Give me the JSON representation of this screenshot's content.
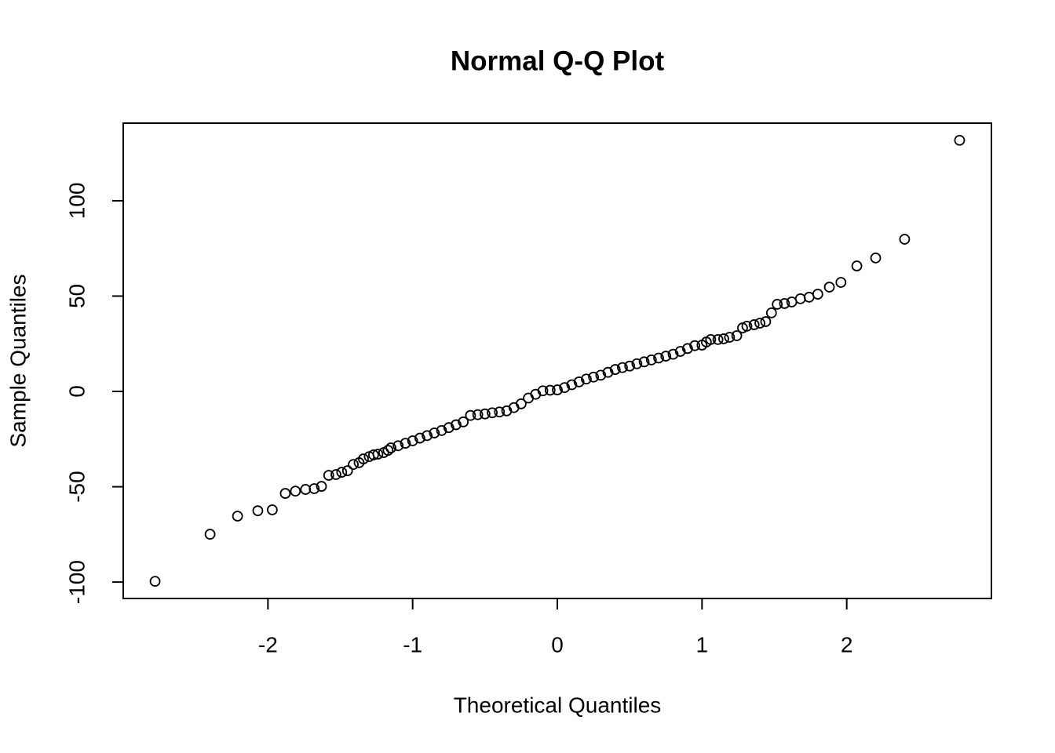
{
  "chart_data": {
    "type": "scatter",
    "title": "Normal Q-Q Plot",
    "x_label": "Theoretical Quantiles",
    "y_label": "Sample Quantiles",
    "xlim": [
      -3.0,
      3.0
    ],
    "ylim": [
      -108.6,
      140.7
    ],
    "xticks": [
      -2,
      -1,
      0,
      1,
      2
    ],
    "yticks": [
      -100,
      -50,
      0,
      50,
      100
    ],
    "color": "#000000",
    "x": [
      -2.78,
      -2.4,
      -2.21,
      -2.07,
      -1.97,
      -1.88,
      -1.81,
      -1.74,
      -1.68,
      -1.63,
      -1.58,
      -1.53,
      -1.49,
      -1.45,
      -1.41,
      -1.37,
      -1.34,
      -1.3,
      -1.27,
      -1.24,
      -1.2,
      -1.17,
      -1.15,
      -1.1,
      -1.05,
      -1.0,
      -0.95,
      -0.9,
      -0.85,
      -0.8,
      -0.75,
      -0.7,
      -0.65,
      -0.6,
      -0.55,
      -0.5,
      -0.45,
      -0.4,
      -0.35,
      -0.3,
      -0.25,
      -0.2,
      -0.15,
      -0.1,
      -0.05,
      0.0,
      0.05,
      0.1,
      0.15,
      0.2,
      0.25,
      0.3,
      0.35,
      0.4,
      0.45,
      0.5,
      0.55,
      0.6,
      0.65,
      0.7,
      0.75,
      0.8,
      0.85,
      0.9,
      0.95,
      1.0,
      1.03,
      1.06,
      1.11,
      1.15,
      1.19,
      1.24,
      1.28,
      1.31,
      1.36,
      1.4,
      1.44,
      1.48,
      1.52,
      1.57,
      1.62,
      1.68,
      1.74,
      1.8,
      1.88,
      1.96,
      2.07,
      2.2,
      2.4,
      2.78
    ],
    "values": [
      -99.6,
      -74.9,
      -65.4,
      -62.6,
      -62.1,
      -53.5,
      -52.3,
      -51.4,
      -51.0,
      -49.8,
      -44.0,
      -43.6,
      -42.4,
      -41.6,
      -38.3,
      -37.4,
      -35.4,
      -34.2,
      -33.3,
      -32.9,
      -32.1,
      -30.9,
      -29.6,
      -28.5,
      -27.2,
      -25.9,
      -24.5,
      -23.2,
      -21.8,
      -20.5,
      -19.0,
      -17.5,
      -16.0,
      -12.6,
      -12.2,
      -11.8,
      -11.2,
      -10.8,
      -10.2,
      -8.5,
      -6.5,
      -3.5,
      -1.5,
      0.3,
      0.6,
      0.8,
      2.0,
      3.5,
      5.0,
      6.5,
      7.5,
      8.5,
      10.0,
      11.5,
      12.5,
      13.3,
      14.5,
      15.5,
      16.5,
      17.5,
      18.5,
      19.5,
      21.0,
      22.5,
      24.0,
      24.3,
      25.9,
      27.2,
      27.2,
      27.6,
      28.4,
      29.2,
      33.3,
      34.2,
      35.0,
      35.8,
      36.6,
      41.2,
      45.7,
      46.1,
      46.9,
      48.6,
      49.4,
      51.0,
      54.7,
      57.2,
      65.8,
      70.0,
      79.8,
      131.7
    ]
  }
}
